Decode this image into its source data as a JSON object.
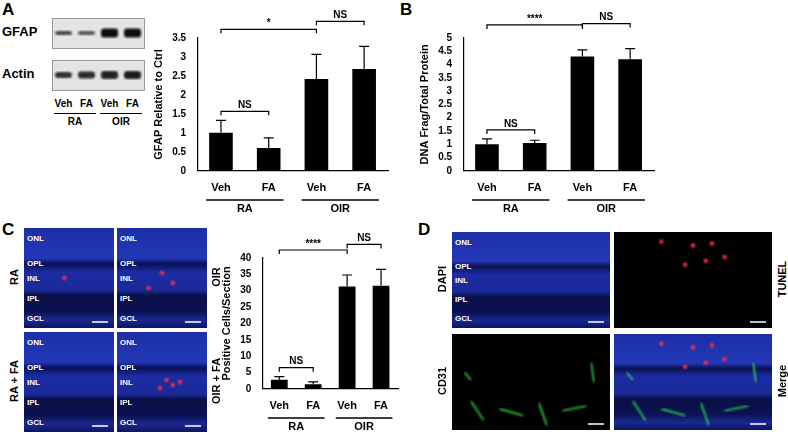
{
  "panel_labels": [
    "A",
    "B",
    "C",
    "D"
  ],
  "blot": {
    "rows": [
      "GFAP",
      "Actin"
    ],
    "lanes": [
      "Veh",
      "FA",
      "Veh",
      "FA"
    ],
    "groups": [
      {
        "label": "RA",
        "span": [
          0,
          1
        ]
      },
      {
        "label": "OIR",
        "span": [
          2,
          3
        ]
      }
    ]
  },
  "chart_data": [
    {
      "type": "bar",
      "categories": [
        "Veh",
        "FA",
        "Veh",
        "FA"
      ],
      "groups": [
        {
          "label": "RA",
          "span": [
            0,
            1
          ]
        },
        {
          "label": "OIR",
          "span": [
            2,
            3
          ]
        }
      ],
      "values": [
        1.0,
        0.6,
        2.42,
        2.68
      ],
      "errors": [
        0.33,
        0.27,
        0.65,
        0.6
      ],
      "color": "#000000",
      "y_label": "GFAP Relative to Ctrl",
      "ylim": [
        0,
        3.5
      ],
      "yticks": [
        0,
        0.5,
        1,
        1.5,
        2,
        2.5,
        3,
        3.5
      ],
      "grid": false,
      "significance": [
        {
          "span": [
            0,
            1
          ],
          "label": "NS"
        },
        {
          "span": [
            0,
            2
          ],
          "label": "*"
        },
        {
          "span": [
            2,
            3
          ],
          "label": "NS"
        }
      ]
    },
    {
      "type": "bar",
      "categories": [
        "Veh",
        "FA",
        "Veh",
        "FA"
      ],
      "groups": [
        {
          "label": "RA",
          "span": [
            0,
            1
          ]
        },
        {
          "label": "OIR",
          "span": [
            2,
            3
          ]
        }
      ],
      "values": [
        1.0,
        1.05,
        4.3,
        4.2
      ],
      "errors": [
        0.2,
        0.1,
        0.25,
        0.4
      ],
      "color": "#000000",
      "y_label": "DNA Frag/Total Protein",
      "ylim": [
        0,
        5
      ],
      "yticks": [
        0,
        0.5,
        1,
        1.5,
        2,
        2.5,
        3,
        3.5,
        4,
        4.5,
        5
      ],
      "grid": false,
      "significance": [
        {
          "span": [
            0,
            1
          ],
          "label": "NS"
        },
        {
          "span": [
            0,
            2
          ],
          "label": "****"
        },
        {
          "span": [
            2,
            3
          ],
          "label": "NS"
        }
      ]
    },
    {
      "type": "bar",
      "categories": [
        "Veh",
        "FA",
        "Veh",
        "FA"
      ],
      "groups": [
        {
          "label": "RA",
          "span": [
            0,
            1
          ]
        },
        {
          "label": "OIR",
          "span": [
            2,
            3
          ]
        }
      ],
      "values": [
        2.8,
        1.4,
        31.3,
        31.5
      ],
      "errors": [
        0.9,
        0.7,
        3.5,
        5.0
      ],
      "color": "#000000",
      "y_label": "Positive Cells/Section",
      "ylim": [
        0,
        40
      ],
      "yticks": [
        0,
        5,
        10,
        15,
        20,
        25,
        30,
        35,
        40
      ],
      "grid": false,
      "significance": [
        {
          "span": [
            0,
            1
          ],
          "label": "NS"
        },
        {
          "span": [
            0,
            2
          ],
          "label": "****"
        },
        {
          "span": [
            2,
            3
          ],
          "label": "NS"
        }
      ]
    }
  ],
  "micrographs": [
    {
      "images": [
        {
          "label": "RA",
          "layers": [
            "ONL",
            "OPL",
            "INL",
            "IPL",
            "GCL"
          ]
        },
        {
          "label": "OIR",
          "layers": [
            "ONL",
            "OPL",
            "INL",
            "IPL",
            "GCL"
          ]
        },
        {
          "label": "RA + FA",
          "layers": [
            "ONL",
            "OPL",
            "INL",
            "IPL",
            "GCL"
          ]
        },
        {
          "label": "OIR + FA",
          "layers": [
            "ONL",
            "OPL",
            "INL",
            "IPL",
            "GCL"
          ]
        }
      ]
    },
    {
      "images": [
        {
          "label": "DAPI",
          "layers": [
            "ONL",
            "OPL",
            "INL",
            "IPL",
            "GCL"
          ]
        },
        {
          "label": "TUNEL",
          "layers": []
        },
        {
          "label": "CD31",
          "layers": []
        },
        {
          "label": "Merge",
          "layers": []
        }
      ]
    }
  ]
}
